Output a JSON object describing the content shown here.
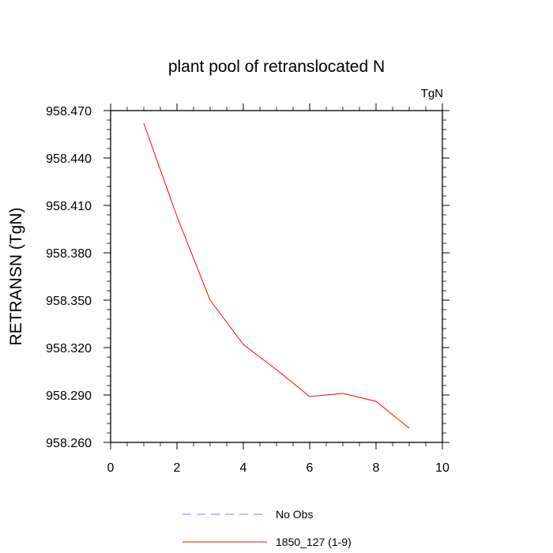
{
  "chart_data": {
    "type": "line",
    "title": "plant pool of retranslocated N",
    "units": "TgN",
    "ylabel": "RETRANSN  (TgN)",
    "xlabel": "",
    "xlim": [
      0,
      10
    ],
    "ylim": [
      958.26,
      958.47
    ],
    "x_ticks": [
      "0",
      "2",
      "4",
      "6",
      "8",
      "10"
    ],
    "y_ticks": [
      "958.260",
      "958.290",
      "958.320",
      "958.350",
      "958.380",
      "958.410",
      "958.440",
      "958.470"
    ],
    "grid": false,
    "legend_position": "bottom",
    "series": [
      {
        "name": "1850_127 (1-9)",
        "color": "#ff0000",
        "x": [
          1,
          2,
          3,
          4,
          5,
          6,
          7,
          8,
          9
        ],
        "values": [
          958.462,
          958.403,
          958.35,
          958.322,
          958.306,
          958.289,
          958.291,
          958.286,
          958.269
        ]
      }
    ],
    "legend": [
      {
        "label": "No Obs",
        "color": "#8080ff",
        "style": "dashed"
      },
      {
        "label": "1850_127 (1-9)",
        "color": "#ff0000",
        "style": "solid"
      }
    ]
  }
}
